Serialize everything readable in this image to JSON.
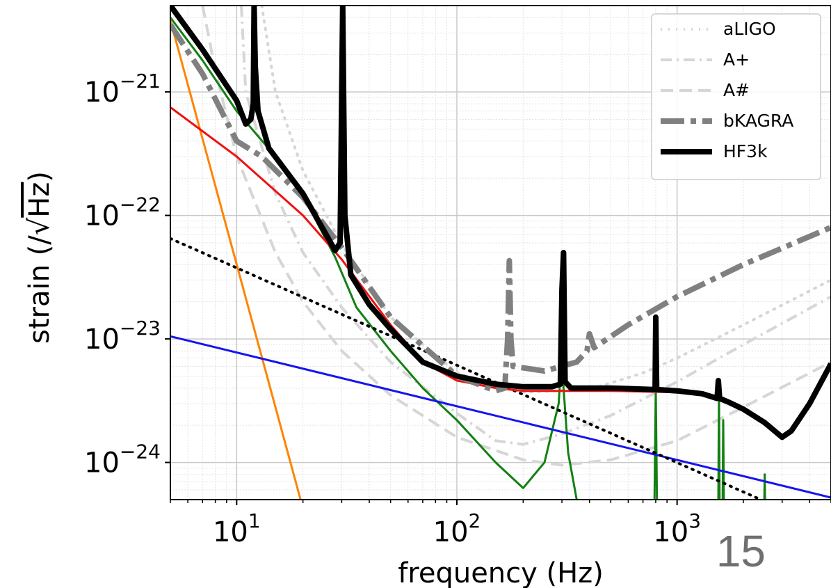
{
  "page_number": "15",
  "chart_data": {
    "type": "line",
    "title": "",
    "xlabel": "frequency (Hz)",
    "ylabel_prefix": "strain (/",
    "ylabel_radical": "√",
    "ylabel_radicand": "Hz",
    "ylabel_suffix": ")",
    "xscale": "log",
    "yscale": "log",
    "xlim": [
      5,
      5000
    ],
    "ylim": [
      5e-25,
      5e-21
    ],
    "grid": true,
    "legend_position": "top-right",
    "x_ticks": [
      {
        "value": 10,
        "base": "10",
        "exp": "1"
      },
      {
        "value": 100,
        "base": "10",
        "exp": "2"
      },
      {
        "value": 1000,
        "base": "10",
        "exp": "3"
      }
    ],
    "y_ticks": [
      {
        "value": 1e-21,
        "base": "10",
        "exp": "−21"
      },
      {
        "value": 1e-22,
        "base": "10",
        "exp": "−22"
      },
      {
        "value": 1e-23,
        "base": "10",
        "exp": "−23"
      },
      {
        "value": 1e-24,
        "base": "10",
        "exp": "−24"
      }
    ],
    "series": [
      {
        "id": "aligo",
        "name": "aLIGO",
        "color": "#d6d6d6",
        "width": 4,
        "dash": "2 9",
        "legend": true,
        "points": [
          [
            13,
            5e-21
          ],
          [
            15,
            1e-21
          ],
          [
            20,
            2.3e-22
          ],
          [
            30,
            5.8e-23
          ],
          [
            50,
            1.5e-23
          ],
          [
            100,
            5.3e-24
          ],
          [
            200,
            3.7e-24
          ],
          [
            400,
            3.9e-24
          ],
          [
            700,
            5.3e-24
          ],
          [
            1000,
            7e-24
          ],
          [
            2000,
            1.3e-23
          ],
          [
            5000,
            3e-23
          ]
        ]
      },
      {
        "id": "aplus",
        "name": "A+",
        "color": "#d6d6d6",
        "width": 4,
        "dash": "16 7 3 7",
        "legend": true,
        "points": [
          [
            10.5,
            5e-21
          ],
          [
            11,
            1e-21
          ],
          [
            15,
            1.5e-22
          ],
          [
            20,
            5e-23
          ],
          [
            30,
            1.8e-23
          ],
          [
            50,
            6.5e-24
          ],
          [
            100,
            2.5e-24
          ],
          [
            150,
            1.5e-24
          ],
          [
            200,
            1.4e-24
          ],
          [
            300,
            1.7e-24
          ],
          [
            500,
            2.4e-24
          ],
          [
            1000,
            4.5e-24
          ],
          [
            2000,
            9e-24
          ],
          [
            5000,
            2.2e-23
          ]
        ]
      },
      {
        "id": "asharp",
        "name": "A#",
        "color": "#d6d6d6",
        "width": 4,
        "dash": "18 9",
        "legend": true,
        "points": [
          [
            7,
            5e-21
          ],
          [
            8,
            1.5e-21
          ],
          [
            10,
            3e-22
          ],
          [
            15,
            5e-23
          ],
          [
            20,
            2e-23
          ],
          [
            30,
            8e-24
          ],
          [
            50,
            3.5e-24
          ],
          [
            100,
            1.6e-24
          ],
          [
            200,
            1.05e-24
          ],
          [
            300,
            9.5e-25
          ],
          [
            500,
            1.05e-24
          ],
          [
            1000,
            1.5e-24
          ],
          [
            2000,
            2.8e-24
          ],
          [
            5000,
            6.5e-24
          ]
        ]
      },
      {
        "id": "bkagra",
        "name": "bKAGRA",
        "color": "#808080",
        "width": 8,
        "dash": "34 9 8 9",
        "legend": true,
        "points": [
          [
            5,
            3.5e-21
          ],
          [
            7,
            1.4e-21
          ],
          [
            10,
            4e-22
          ],
          [
            13,
            3e-22
          ],
          [
            20,
            1.4e-22
          ],
          [
            30,
            5.5e-23
          ],
          [
            50,
            1.5e-23
          ],
          [
            100,
            5e-24
          ],
          [
            150,
            3.8e-24
          ],
          [
            165,
            4e-24
          ],
          [
            170,
            1e-23
          ],
          [
            173,
            4.3e-23
          ],
          [
            176,
            1e-23
          ],
          [
            180,
            6e-24
          ],
          [
            250,
            5.5e-24
          ],
          [
            350,
            6.5e-24
          ],
          [
            390,
            8e-24
          ],
          [
            400,
            1.1e-23
          ],
          [
            420,
            8.5e-24
          ],
          [
            600,
            1.3e-23
          ],
          [
            1000,
            2.2e-23
          ],
          [
            2000,
            4e-23
          ],
          [
            5000,
            8e-23
          ]
        ]
      },
      {
        "id": "hf3k",
        "name": "HF3k",
        "color": "#000000",
        "width": 8,
        "dash": "",
        "legend": true,
        "points": [
          [
            5,
            5e-21
          ],
          [
            7,
            2.2e-21
          ],
          [
            10,
            8.5e-22
          ],
          [
            11,
            5.5e-22
          ],
          [
            11.6,
            6e-22
          ],
          [
            11.9,
            8e-22
          ],
          [
            12.0,
            5e-21
          ],
          [
            12.15,
            1.6e-21
          ],
          [
            12.5,
            7e-22
          ],
          [
            14,
            3.5e-22
          ],
          [
            20,
            1.5e-22
          ],
          [
            28,
            5.2e-23
          ],
          [
            29.5,
            6e-23
          ],
          [
            30.3,
            5e-21
          ],
          [
            31,
            1e-22
          ],
          [
            33,
            3.3e-23
          ],
          [
            40,
            1.9e-23
          ],
          [
            50,
            1.2e-23
          ],
          [
            70,
            6.5e-24
          ],
          [
            100,
            5e-24
          ],
          [
            150,
            4.3e-24
          ],
          [
            200,
            4.1e-24
          ],
          [
            270,
            4.1e-24
          ],
          [
            295,
            4.3e-24
          ],
          [
            300,
            2.5e-23
          ],
          [
            305,
            5e-23
          ],
          [
            310,
            4.5e-24
          ],
          [
            330,
            4e-24
          ],
          [
            500,
            4e-24
          ],
          [
            780,
            3.9e-24
          ],
          [
            795,
            4e-24
          ],
          [
            800,
            1.5e-23
          ],
          [
            808,
            3.9e-24
          ],
          [
            1000,
            3.8e-24
          ],
          [
            1300,
            3.6e-24
          ],
          [
            1520,
            3.3e-24
          ],
          [
            1540,
            4.6e-24
          ],
          [
            1560,
            3.3e-24
          ],
          [
            1700,
            3.1e-24
          ],
          [
            2000,
            2.7e-24
          ],
          [
            2500,
            2.1e-24
          ],
          [
            3000,
            1.6e-24
          ],
          [
            3300,
            1.8e-24
          ],
          [
            4000,
            3e-24
          ],
          [
            5000,
            6.3e-24
          ]
        ]
      },
      {
        "id": "green",
        "name": "",
        "color": "#128012",
        "width": 3,
        "dash": "",
        "legend": false,
        "points": [
          [
            5,
            4e-21
          ],
          [
            7,
            1.8e-21
          ],
          [
            10,
            7e-22
          ],
          [
            15,
            3e-22
          ],
          [
            20,
            1.45e-22
          ],
          [
            28,
            4.6e-23
          ],
          [
            35,
            1.8e-23
          ],
          [
            50,
            8e-24
          ],
          [
            70,
            4e-24
          ],
          [
            100,
            2.2e-24
          ],
          [
            150,
            1e-24
          ],
          [
            200,
            6.2e-25
          ],
          [
            250,
            1e-24
          ],
          [
            290,
            3e-24
          ],
          [
            300,
            8e-24
          ],
          [
            305,
            4e-24
          ],
          [
            320,
            1.2e-24
          ],
          [
            350,
            5e-25
          ]
        ]
      },
      {
        "id": "green_spike_800",
        "name": "",
        "color": "#128012",
        "width": 3,
        "dash": "",
        "legend": false,
        "points": [
          [
            790,
            5e-25
          ],
          [
            800,
            4e-24
          ],
          [
            810,
            5e-25
          ]
        ]
      },
      {
        "id": "green_spike_1550",
        "name": "",
        "color": "#128012",
        "width": 3,
        "dash": "",
        "legend": false,
        "points": [
          [
            1540,
            5e-25
          ],
          [
            1550,
            4e-24
          ],
          [
            1560,
            5e-25
          ]
        ]
      },
      {
        "id": "green_spike_1620",
        "name": "",
        "color": "#128012",
        "width": 3,
        "dash": "",
        "legend": false,
        "points": [
          [
            1610,
            5e-25
          ],
          [
            1620,
            2.2e-24
          ],
          [
            1630,
            5e-25
          ]
        ]
      },
      {
        "id": "green_spike_2500",
        "name": "",
        "color": "#128012",
        "width": 3,
        "dash": "",
        "legend": false,
        "points": [
          [
            2490,
            5e-25
          ],
          [
            2500,
            8e-25
          ],
          [
            2510,
            5e-25
          ]
        ]
      },
      {
        "id": "red",
        "name": "",
        "color": "#ee1111",
        "width": 3,
        "dash": "",
        "legend": false,
        "points": [
          [
            5,
            7.5e-22
          ],
          [
            10,
            3e-22
          ],
          [
            20,
            1e-22
          ],
          [
            30,
            4.4e-23
          ],
          [
            50,
            1.3e-23
          ],
          [
            70,
            6.5e-24
          ],
          [
            100,
            4.6e-24
          ],
          [
            150,
            4e-24
          ],
          [
            200,
            3.8e-24
          ],
          [
            500,
            3.8e-24
          ],
          [
            1000,
            3.7e-24
          ]
        ]
      },
      {
        "id": "blue",
        "name": "",
        "color": "#1515ee",
        "width": 3,
        "dash": "",
        "legend": false,
        "points": [
          [
            5,
            1.05e-23
          ],
          [
            5000,
            5.2e-25
          ]
        ]
      },
      {
        "id": "orange",
        "name": "",
        "color": "#ff8300",
        "width": 3,
        "dash": "",
        "legend": false,
        "points": [
          [
            5,
            3.8e-21
          ],
          [
            19.5,
            5e-25
          ]
        ]
      },
      {
        "id": "dotted_black",
        "name": "",
        "color": "#000000",
        "width": 4,
        "dash": "2 8",
        "legend": false,
        "points": [
          [
            5,
            6.5e-23
          ],
          [
            2400,
            5e-25
          ]
        ]
      }
    ]
  }
}
